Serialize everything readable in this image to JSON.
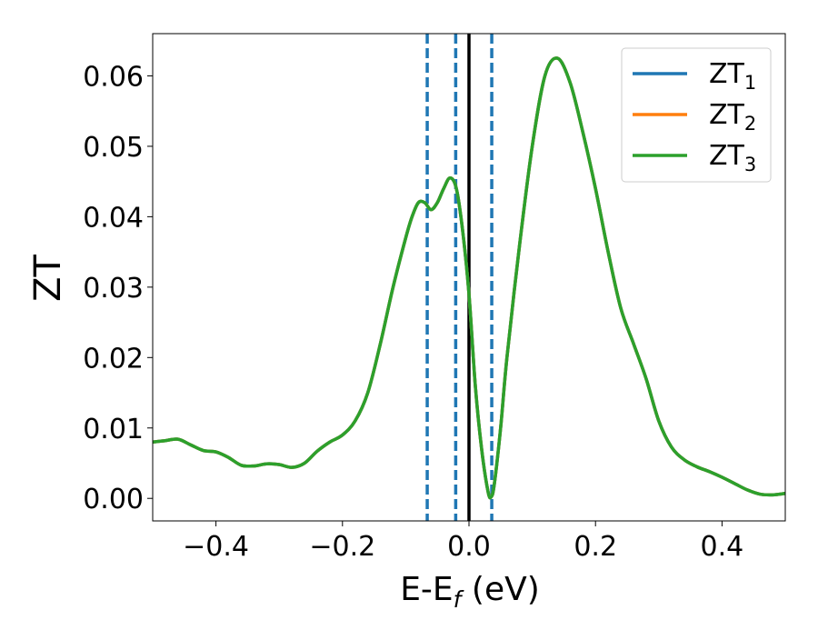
{
  "chart_data": {
    "type": "line",
    "xlabel": "E-E",
    "xlabel_sub": "f",
    "xlabel_unit": " (eV)",
    "ylabel": "ZT",
    "xlim": [
      -0.5,
      0.5
    ],
    "ylim": [
      -0.0032,
      0.066
    ],
    "x_ticks": [
      -0.4,
      -0.2,
      0.0,
      0.2,
      0.4
    ],
    "x_tick_labels": [
      "−0.4",
      "−0.2",
      "0.0",
      "0.2",
      "0.4"
    ],
    "y_ticks": [
      0.0,
      0.01,
      0.02,
      0.03,
      0.04,
      0.05,
      0.06
    ],
    "y_tick_labels": [
      "0.00",
      "0.01",
      "0.02",
      "0.03",
      "0.04",
      "0.05",
      "0.06"
    ],
    "grid": false,
    "legend_position": "top-right",
    "vertical_lines": [
      {
        "x": -0.066,
        "style": "dashed",
        "color": "#1f77b4"
      },
      {
        "x": -0.021,
        "style": "dashed",
        "color": "#1f77b4"
      },
      {
        "x": 0.0,
        "style": "solid",
        "color": "#000000"
      },
      {
        "x": 0.036,
        "style": "dashed",
        "color": "#1f77b4"
      }
    ],
    "series": [
      {
        "name": "ZT",
        "sub": "1",
        "color": "#1f77b4"
      },
      {
        "name": "ZT",
        "sub": "2",
        "color": "#ff7f0e"
      },
      {
        "name": "ZT",
        "sub": "3",
        "color": "#2ca02c"
      }
    ],
    "x": [
      -0.5,
      -0.48,
      -0.46,
      -0.44,
      -0.42,
      -0.4,
      -0.38,
      -0.36,
      -0.34,
      -0.32,
      -0.3,
      -0.28,
      -0.26,
      -0.24,
      -0.22,
      -0.2,
      -0.18,
      -0.16,
      -0.14,
      -0.12,
      -0.1,
      -0.09,
      -0.08,
      -0.07,
      -0.06,
      -0.05,
      -0.04,
      -0.03,
      -0.02,
      -0.01,
      0.0,
      0.01,
      0.02,
      0.03,
      0.035,
      0.04,
      0.05,
      0.06,
      0.08,
      0.1,
      0.12,
      0.14,
      0.16,
      0.18,
      0.2,
      0.22,
      0.24,
      0.26,
      0.28,
      0.3,
      0.32,
      0.34,
      0.36,
      0.38,
      0.4,
      0.42,
      0.44,
      0.46,
      0.48,
      0.5
    ],
    "y": [
      0.008,
      0.0082,
      0.0084,
      0.0076,
      0.0068,
      0.0066,
      0.0058,
      0.0047,
      0.0046,
      0.0049,
      0.0048,
      0.0044,
      0.005,
      0.0067,
      0.008,
      0.009,
      0.011,
      0.015,
      0.022,
      0.03,
      0.037,
      0.04,
      0.042,
      0.042,
      0.041,
      0.042,
      0.044,
      0.0455,
      0.044,
      0.038,
      0.029,
      0.016,
      0.007,
      0.001,
      0.0002,
      0.002,
      0.01,
      0.02,
      0.036,
      0.05,
      0.06,
      0.0625,
      0.059,
      0.052,
      0.044,
      0.035,
      0.027,
      0.022,
      0.017,
      0.011,
      0.0073,
      0.0055,
      0.0045,
      0.0038,
      0.003,
      0.0021,
      0.0012,
      0.0006,
      0.0005,
      0.0007
    ]
  }
}
